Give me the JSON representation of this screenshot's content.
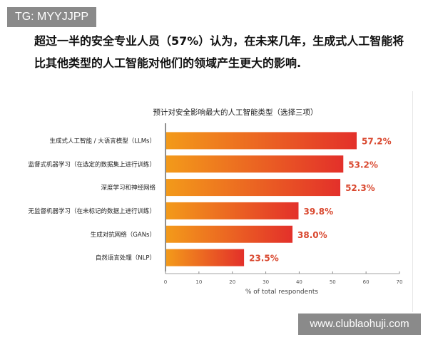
{
  "watermark_top": "TG: MYYJJPP",
  "watermark_bottom": "www.clublaohuji.com",
  "heading": "超过一半的安全专业人员（57%）认为，在未来几年，生成式人工智能将比其他类型的人工智能对他们的领域产生更大的影响.",
  "chart_data": {
    "type": "bar",
    "orientation": "horizontal",
    "title": "预计对安全影响最大的人工智能类型（选择三项）",
    "xlabel": "% of total respondents",
    "ylabel": "",
    "xlim": [
      0,
      70
    ],
    "xticks": [
      "0",
      "10",
      "20",
      "30",
      "40",
      "50",
      "60",
      "70"
    ],
    "categories": [
      "生成式人工智能 / 大语言模型（LLMs）",
      "监督式机器学习（在选定的数据集上进行训练）",
      "深度学习和神经网络",
      "无监督机器学习（在未标记的数据上进行训练）",
      "生成对抗网络（GANs）",
      "自然语言处理（NLP）"
    ],
    "values": [
      57.2,
      53.2,
      52.3,
      39.8,
      38.0,
      23.5
    ],
    "data_labels": [
      "57.2%",
      "53.2%",
      "52.3%",
      "39.8%",
      "38.0%",
      "23.5%"
    ],
    "grid": false,
    "colors": {
      "gradient_start": "#f39a1a",
      "gradient_end": "#e3302a",
      "label": "#d9482f"
    }
  }
}
